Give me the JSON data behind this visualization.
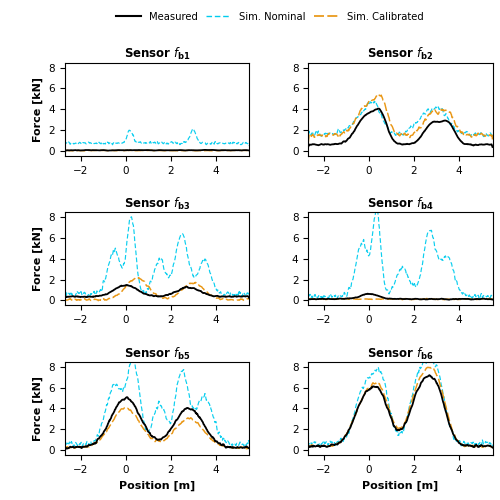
{
  "title_sensors": [
    "b1",
    "b2",
    "b3",
    "b4",
    "b5",
    "b6"
  ],
  "x_range": [
    -2.7,
    5.5
  ],
  "y_range": [
    -0.5,
    8.5
  ],
  "y_ticks": [
    0,
    2,
    4,
    6,
    8
  ],
  "x_ticks": [
    -2,
    0,
    2,
    4
  ],
  "xlabel": "Position [m]",
  "ylabel": "Force [kN]",
  "color_measured": "#000000",
  "color_nominal": "#00CCEE",
  "color_calibrated": "#E8920A",
  "figsize": [
    5.0,
    5.0
  ],
  "dpi": 100
}
